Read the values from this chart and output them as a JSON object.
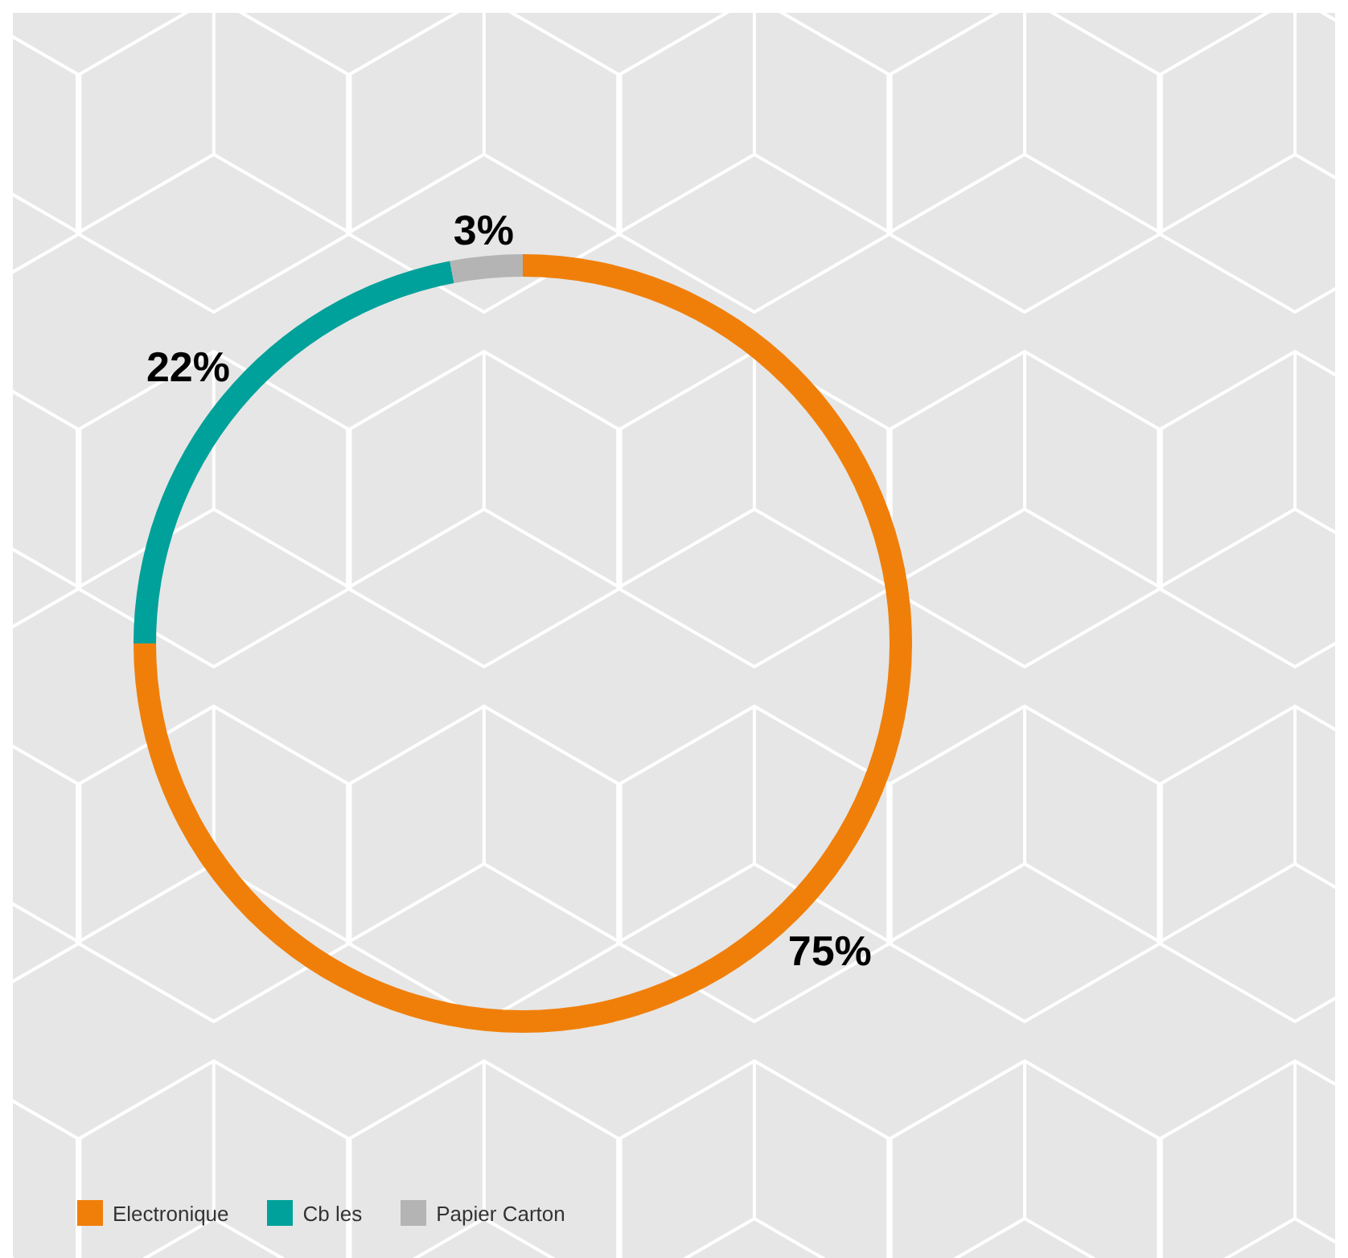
{
  "chart_data": {
    "type": "donut",
    "categories": [
      "Electronique",
      "Cb les",
      "Papier Carton"
    ],
    "values": [
      75,
      22,
      3
    ],
    "colors": [
      "#f07f0a",
      "#00a19a",
      "#b4b4b4"
    ],
    "value_labels": [
      "75%",
      "22%",
      "3%"
    ],
    "legend": "bottom left"
  }
}
